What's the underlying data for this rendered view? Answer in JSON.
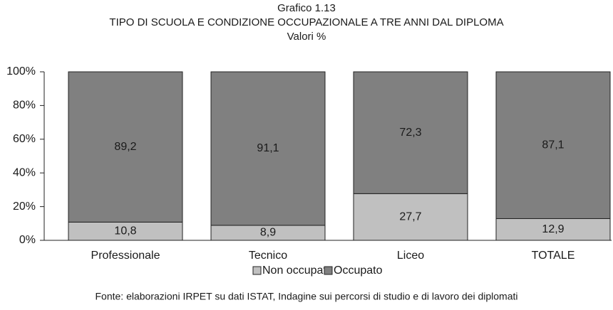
{
  "chart_data": {
    "type": "stacked_bar",
    "title": "Grafico 1.13",
    "subtitle": "TIPO DI SCUOLA E CONDIZIONE OCCUPAZIONALE A TRE ANNI DAL DIPLOMA",
    "unit_note": "Valori %",
    "source": "Fonte: elaborazioni IRPET su dati ISTAT, Indagine sui percorsi di studio e di lavoro dei diplomati",
    "categories": [
      "Professionale",
      "Tecnico",
      "Liceo",
      "TOTALE"
    ],
    "series": [
      {
        "name": "Non occupato",
        "color": "#c0c0c0",
        "values": [
          10.8,
          8.9,
          27.7,
          12.9
        ],
        "value_labels": [
          "10,8",
          "8,9",
          "27,7",
          "12,9"
        ]
      },
      {
        "name": "Occupato",
        "color": "#808080",
        "values": [
          89.2,
          91.1,
          72.3,
          87.1
        ],
        "value_labels": [
          "89,2",
          "91,1",
          "72,3",
          "87,1"
        ]
      }
    ],
    "ylim": [
      0,
      100
    ],
    "yticks": [
      {
        "value": 0,
        "label": "0%"
      },
      {
        "value": 20,
        "label": "20%"
      },
      {
        "value": 40,
        "label": "40%"
      },
      {
        "value": 60,
        "label": "60%"
      },
      {
        "value": 80,
        "label": "80%"
      },
      {
        "value": 100,
        "label": "100%"
      }
    ],
    "legend": "bottom"
  }
}
